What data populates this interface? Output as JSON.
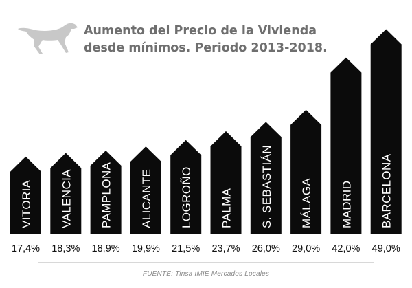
{
  "title": {
    "line1": "Aumento del Precio de la Vivienda",
    "line2": "desde mínimos. Periodo 2013-2018."
  },
  "source": "FUENTE: Tinsa IMIE Mercados Locales",
  "logo": {
    "icon": "dog-silhouette-icon",
    "color": "#c8c8c8"
  },
  "colors": {
    "bar": "#0b0b0b",
    "bar_label": "#ffffff",
    "value_label": "#111111",
    "title": "#6f6f6f"
  },
  "chart_data": {
    "type": "bar",
    "title": "Aumento del Precio de la Vivienda desde mínimos. Periodo 2013-2018.",
    "categories": [
      "VITORIA",
      "VALENCIA",
      "PAMPLONA",
      "ALICANTE",
      "LOGROÑO",
      "PALMA",
      "S. SEBASTIÁN",
      "MÁLAGA",
      "MADRID",
      "BARCELONA"
    ],
    "values": [
      17.4,
      18.3,
      18.9,
      19.9,
      21.5,
      23.7,
      26.0,
      29.0,
      42.0,
      49.0
    ],
    "value_labels": [
      "17,4%",
      "18,3%",
      "18,9%",
      "19,9%",
      "21,5%",
      "23,7%",
      "26,0%",
      "29,0%",
      "42,0%",
      "49,0%"
    ],
    "unit": "%",
    "xlabel": "",
    "ylabel": "",
    "grid": false,
    "legend": "none"
  }
}
